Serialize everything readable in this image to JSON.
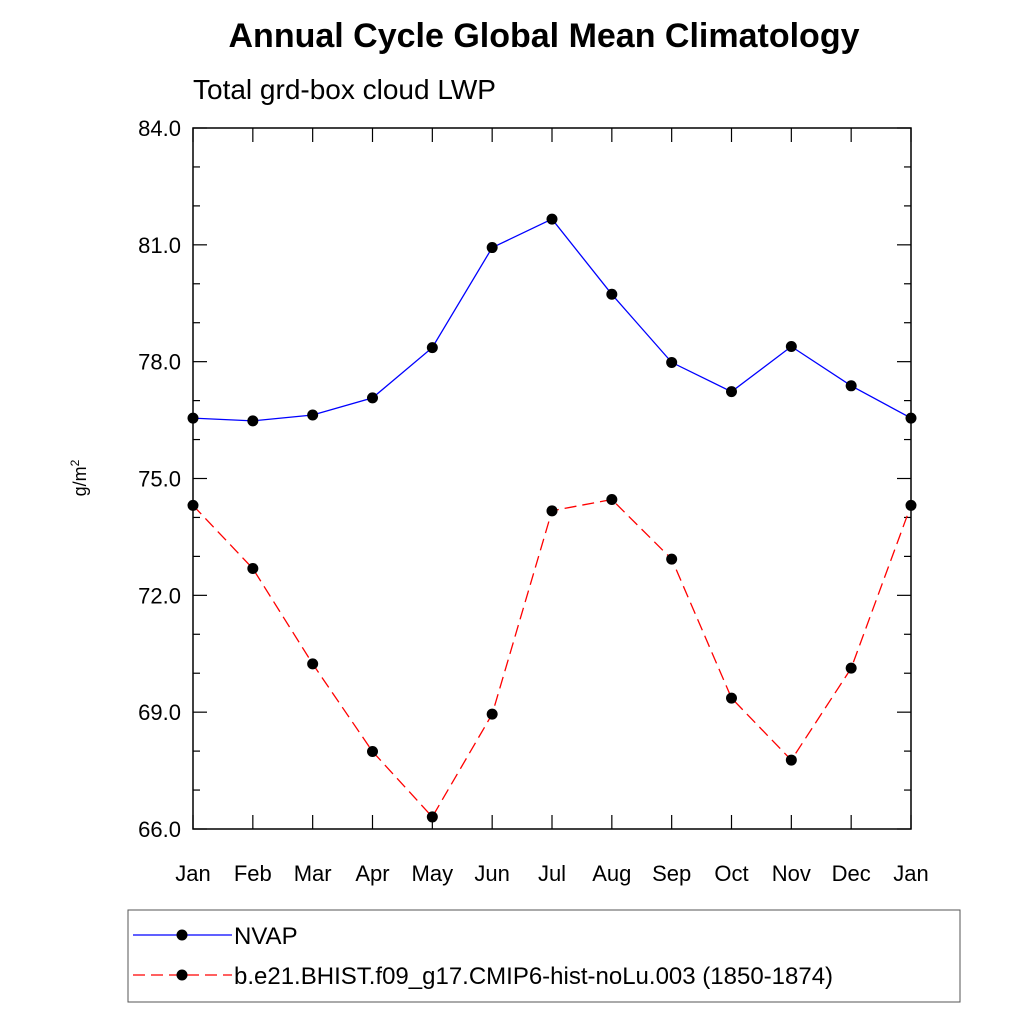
{
  "chart_data": {
    "type": "line",
    "title": "Annual Cycle Global Mean Climatology",
    "subtitle": "Total grd-box cloud LWP",
    "ylabel": "g/m",
    "ylabel_superscript": "2",
    "categories": [
      "Jan",
      "Feb",
      "Mar",
      "Apr",
      "May",
      "Jun",
      "Jul",
      "Aug",
      "Sep",
      "Oct",
      "Nov",
      "Dec",
      "Jan"
    ],
    "ylim": [
      66.0,
      84.0
    ],
    "yticks": [
      "66.0",
      "69.0",
      "72.0",
      "75.0",
      "78.0",
      "81.0",
      "84.0"
    ],
    "grid": false,
    "legend_position": "bottom",
    "series": [
      {
        "name": "NVAP",
        "color": "#0000ff",
        "dashed": false,
        "values": [
          76.55,
          76.48,
          76.63,
          77.07,
          78.36,
          80.93,
          81.66,
          79.73,
          77.98,
          77.23,
          78.39,
          77.38,
          76.55
        ]
      },
      {
        "name": "b.e21.BHIST.f09_g17.CMIP6-hist-noLu.003 (1850-1874)",
        "color": "#ff0000",
        "dashed": true,
        "values": [
          74.31,
          72.69,
          70.24,
          67.99,
          66.31,
          68.95,
          74.17,
          74.46,
          72.93,
          69.36,
          67.77,
          70.13,
          74.31
        ]
      }
    ]
  }
}
